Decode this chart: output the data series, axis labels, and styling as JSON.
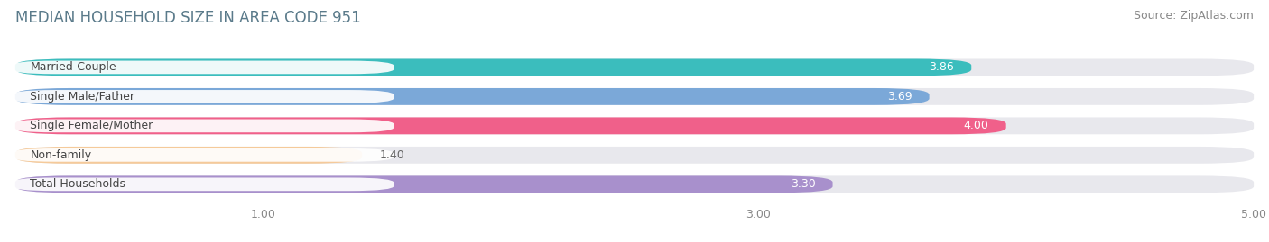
{
  "title": "MEDIAN HOUSEHOLD SIZE IN AREA CODE 951",
  "source": "Source: ZipAtlas.com",
  "categories": [
    "Married-Couple",
    "Single Male/Father",
    "Single Female/Mother",
    "Non-family",
    "Total Households"
  ],
  "values": [
    3.86,
    3.69,
    4.0,
    1.4,
    3.3
  ],
  "bar_colors": [
    "#3bbdbd",
    "#7ba8d8",
    "#f0608a",
    "#f5ca9a",
    "#a890cc"
  ],
  "xlim": [
    0,
    5.0
  ],
  "xticks": [
    1.0,
    3.0,
    5.0
  ],
  "xtick_labels": [
    "1.00",
    "3.00",
    "5.00"
  ],
  "background_color": "#ffffff",
  "bar_bg_color": "#e8e8ed",
  "label_text_color": "#444444",
  "value_inside_color": "#ffffff",
  "value_outside_color": "#666666",
  "title_color": "#5a7a8a",
  "source_color": "#888888",
  "title_fontsize": 12,
  "source_fontsize": 9,
  "label_fontsize": 9,
  "value_fontsize": 9,
  "tick_fontsize": 9,
  "bar_height": 0.58,
  "value_inside_threshold": 2.5
}
